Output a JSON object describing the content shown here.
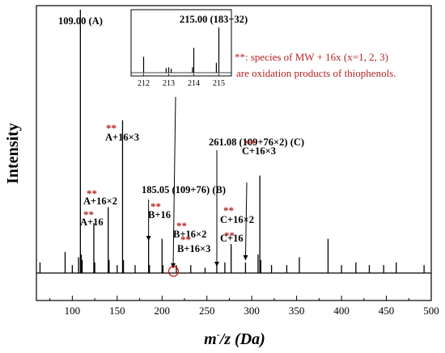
{
  "chart_data": {
    "type": "bar",
    "xlabel_main": "m",
    "xlabel_sup": "-",
    "xlabel_tail": "/z (Da)",
    "ylabel": "Intensity",
    "xlim": [
      60,
      500
    ],
    "ylim": [
      0,
      1
    ],
    "xticks": [
      100,
      150,
      200,
      250,
      300,
      350,
      400,
      450,
      500
    ],
    "x_minor_step": 25,
    "grid": false,
    "peaks": [
      {
        "x": 64,
        "y": 0.04
      },
      {
        "x": 92,
        "y": 0.08
      },
      {
        "x": 100,
        "y": 0.03
      },
      {
        "x": 107,
        "y": 0.06
      },
      {
        "x": 109,
        "y": 1.0
      },
      {
        "x": 110,
        "y": 0.07
      },
      {
        "x": 111,
        "y": 0.05
      },
      {
        "x": 124,
        "y": 0.19
      },
      {
        "x": 125,
        "y": 0.04
      },
      {
        "x": 140,
        "y": 0.25
      },
      {
        "x": 141,
        "y": 0.05
      },
      {
        "x": 150,
        "y": 0.03
      },
      {
        "x": 156,
        "y": 0.58
      },
      {
        "x": 157,
        "y": 0.05
      },
      {
        "x": 170,
        "y": 0.03
      },
      {
        "x": 185,
        "y": 0.14
      },
      {
        "x": 186,
        "y": 0.03
      },
      {
        "x": 200,
        "y": 0.13
      },
      {
        "x": 201,
        "y": 0.03
      },
      {
        "x": 216,
        "y": 0.03
      },
      {
        "x": 232,
        "y": 0.03
      },
      {
        "x": 248,
        "y": 0.02
      },
      {
        "x": 261,
        "y": 0.03
      },
      {
        "x": 270,
        "y": 0.04
      },
      {
        "x": 277,
        "y": 0.11
      },
      {
        "x": 293,
        "y": 0.04
      },
      {
        "x": 307,
        "y": 0.07
      },
      {
        "x": 309,
        "y": 0.37
      },
      {
        "x": 310,
        "y": 0.05
      },
      {
        "x": 322,
        "y": 0.03
      },
      {
        "x": 339,
        "y": 0.03
      },
      {
        "x": 353,
        "y": 0.06
      },
      {
        "x": 385,
        "y": 0.13
      },
      {
        "x": 400,
        "y": 0.03
      },
      {
        "x": 416,
        "y": 0.04
      },
      {
        "x": 431,
        "y": 0.03
      },
      {
        "x": 447,
        "y": 0.03
      },
      {
        "x": 461,
        "y": 0.04
      },
      {
        "x": 492,
        "y": 0.03
      }
    ],
    "peak_labels": [
      {
        "text": "109.00 (A)",
        "x": 109
      },
      {
        "text": "185.05 (109+76) (B)",
        "x": 185
      },
      {
        "text": "261.08 (109+76×2) (C)",
        "x": 261
      }
    ],
    "oxidation_labels": [
      {
        "star": "**",
        "text": "A+16",
        "x": 124
      },
      {
        "star": "**",
        "text": "A+16×2",
        "x": 140
      },
      {
        "star": "**",
        "text": "A+16×3",
        "x": 156
      },
      {
        "star": "**",
        "text": "B+16",
        "x": 201
      },
      {
        "star": "**",
        "text": "B+16×2",
        "x": 216
      },
      {
        "star": "**",
        "text": "B+16×3",
        "x": 232
      },
      {
        "star": "**",
        "text": "C+16",
        "x": 277
      },
      {
        "star": "**",
        "text": "C+16×2",
        "x": 293
      },
      {
        "star": "**",
        "text": "C+16×3",
        "x": 309
      }
    ],
    "inset": {
      "label": "215.00 (183+32)",
      "xlim": [
        211.5,
        215.5
      ],
      "xticks": [
        212,
        213,
        214,
        215
      ],
      "peaks": [
        {
          "x": 212.0,
          "y": 0.35
        },
        {
          "x": 212.9,
          "y": 0.1
        },
        {
          "x": 213.0,
          "y": 0.12
        },
        {
          "x": 213.1,
          "y": 0.09
        },
        {
          "x": 213.95,
          "y": 0.12
        },
        {
          "x": 214.0,
          "y": 0.55
        },
        {
          "x": 214.9,
          "y": 0.22
        },
        {
          "x": 215.0,
          "y": 1.0
        }
      ]
    },
    "note": {
      "star": "**",
      "line1": ": species of MW + 16x (x=1, 2, 3)",
      "line2": "are oxidation products of thiophenols."
    }
  }
}
